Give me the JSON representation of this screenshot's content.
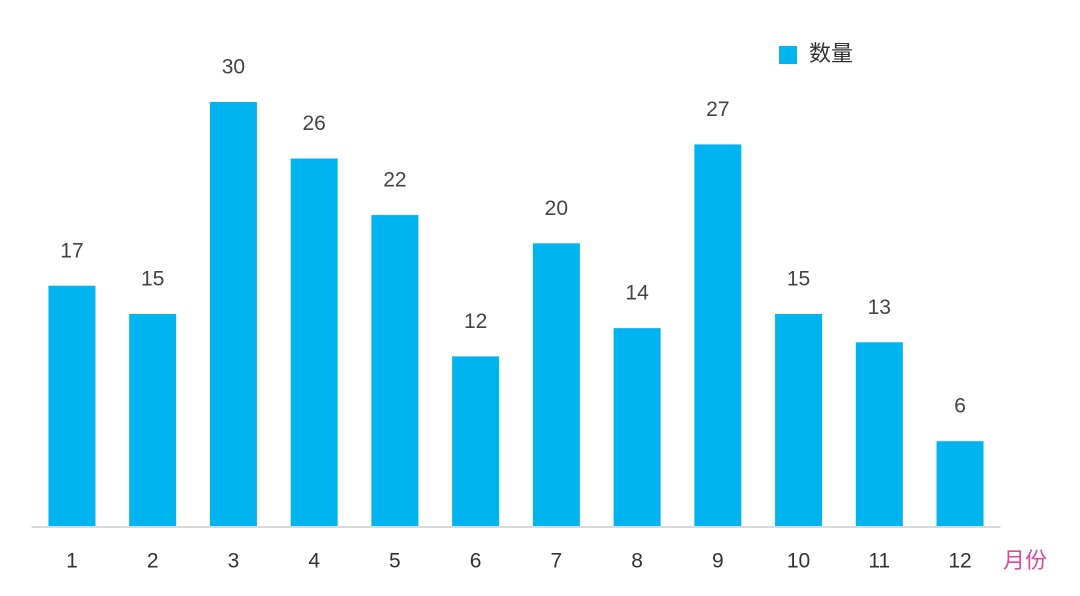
{
  "chart_data": {
    "type": "bar",
    "categories": [
      "1",
      "2",
      "3",
      "4",
      "5",
      "6",
      "7",
      "8",
      "9",
      "10",
      "11",
      "12"
    ],
    "values": [
      17,
      15,
      30,
      26,
      22,
      12,
      20,
      14,
      27,
      15,
      13,
      6
    ],
    "color": "#00b4f0",
    "legend": "数量",
    "x_label": "月份",
    "ylim": [
      0,
      30
    ]
  }
}
